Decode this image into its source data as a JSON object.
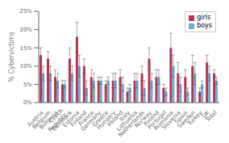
{
  "chart_data": {
    "type": "bar",
    "categories": [
      "Austria",
      "Belgium",
      "Bulgaria",
      "Czech\nRepublic",
      "Denmark",
      "Estonia",
      "Finland",
      "France",
      "Germany",
      "Greece",
      "Hungary",
      "Ireland",
      "Italy",
      "Lithuania",
      "Netherlands",
      "Norway",
      "Poland",
      "Portugal",
      "Romania",
      "Slovenia",
      "Spain",
      "Sweden",
      "Turkey",
      "UK",
      "Total"
    ],
    "series": [
      {
        "name": "girls",
        "color": "#C03050",
        "values": [
          13,
          12,
          7,
          5,
          12,
          18,
          10,
          7,
          6,
          5,
          6,
          7,
          3,
          6,
          8,
          12,
          7,
          4,
          15,
          8,
          7,
          10,
          3,
          11,
          8
        ],
        "errors": [
          2,
          2,
          2,
          1,
          3,
          4,
          2,
          2,
          1,
          1,
          2,
          2,
          1,
          2,
          2,
          3,
          2,
          1,
          4,
          3,
          2,
          3,
          1,
          2,
          1
        ]
      },
      {
        "name": "boys",
        "color": "#6BAED6",
        "values": [
          8,
          8,
          6,
          5,
          8,
          10,
          4,
          6,
          6,
          6,
          6,
          5,
          4,
          6,
          4,
          6,
          7,
          3,
          10,
          5,
          3,
          8,
          5,
          8,
          6
        ],
        "errors": [
          2,
          2,
          2,
          1,
          2,
          3,
          2,
          2,
          1,
          1,
          2,
          2,
          1,
          2,
          2,
          2,
          2,
          1,
          3,
          2,
          1,
          3,
          1,
          2,
          1
        ]
      }
    ],
    "ylabel": "% Cybervictims",
    "ylim": [
      0,
      25
    ],
    "yticks": [
      {
        "value": 0,
        "label": "0%"
      },
      {
        "value": 5,
        "label": "5%"
      },
      {
        "value": 10,
        "label": "10%"
      },
      {
        "value": 15,
        "label": "15%"
      },
      {
        "value": 20,
        "label": "20%"
      },
      {
        "value": 25,
        "label": "25%"
      }
    ],
    "legend": "upper right",
    "grid": false
  }
}
